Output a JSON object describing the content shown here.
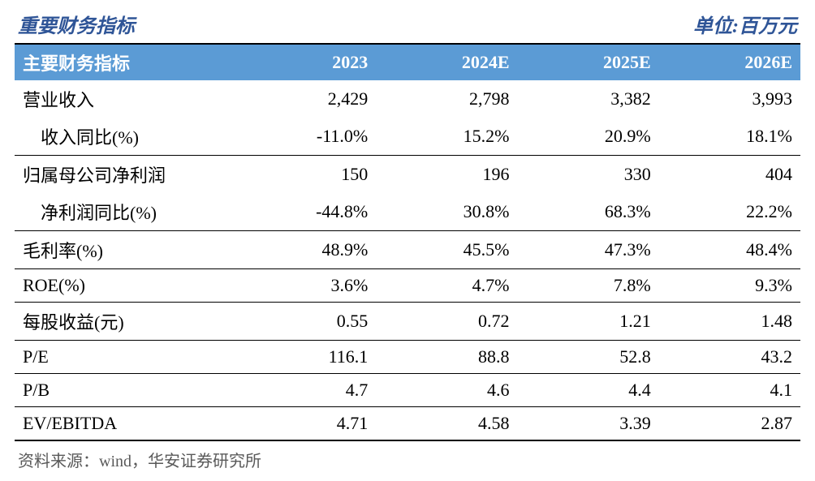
{
  "title_left": "重要财务指标",
  "title_right": "单位:百万元",
  "header": {
    "col0": "主要财务指标",
    "col1": "2023",
    "col2": "2024E",
    "col3": "2025E",
    "col4": "2026E"
  },
  "rows": [
    {
      "label": "营业收入",
      "v1": "2,429",
      "v2": "2,798",
      "v3": "3,382",
      "v4": "3,993",
      "sep": false,
      "indent": false
    },
    {
      "label": "收入同比(%)",
      "v1": "-11.0%",
      "v2": "15.2%",
      "v3": "20.9%",
      "v4": "18.1%",
      "sep": true,
      "indent": true
    },
    {
      "label": "归属母公司净利润",
      "v1": "150",
      "v2": "196",
      "v3": "330",
      "v4": "404",
      "sep": false,
      "indent": false
    },
    {
      "label": "净利润同比(%)",
      "v1": "-44.8%",
      "v2": "30.8%",
      "v3": "68.3%",
      "v4": "22.2%",
      "sep": true,
      "indent": true
    },
    {
      "label": "毛利率(%)",
      "v1": "48.9%",
      "v2": "45.5%",
      "v3": "47.3%",
      "v4": "48.4%",
      "sep": true,
      "indent": false
    },
    {
      "label": "ROE(%)",
      "v1": "3.6%",
      "v2": "4.7%",
      "v3": "7.8%",
      "v4": "9.3%",
      "sep": true,
      "indent": false
    },
    {
      "label": "每股收益(元)",
      "v1": "0.55",
      "v2": "0.72",
      "v3": "1.21",
      "v4": "1.48",
      "sep": true,
      "indent": false
    },
    {
      "label": "P/E",
      "v1": "116.1",
      "v2": "88.8",
      "v3": "52.8",
      "v4": "43.2",
      "sep": true,
      "indent": false
    },
    {
      "label": "P/B",
      "v1": "4.7",
      "v2": "4.6",
      "v3": "4.4",
      "v4": "4.1",
      "sep": true,
      "indent": false
    },
    {
      "label": "EV/EBITDA",
      "v1": "4.71",
      "v2": "4.58",
      "v3": "3.39",
      "v4": "2.87",
      "sep": false,
      "indent": false
    }
  ],
  "source_note": "资料来源：wind，华安证券研究所",
  "styling": {
    "header_bg": "#5b9bd5",
    "header_text": "#ffffff",
    "title_color": "#2f5597",
    "border_color": "#000000",
    "body_text": "#000000",
    "source_text": "#595959",
    "background": "#ffffff",
    "font_family": "SimSun",
    "title_fontsize": 24,
    "header_fontsize": 22,
    "cell_fontsize": 22,
    "source_fontsize": 20
  },
  "table_meta": {
    "type": "table",
    "columns": 5,
    "rows": 10,
    "col_widths_pct": [
      28,
      18,
      18,
      18,
      18
    ],
    "col_align": [
      "left",
      "right",
      "right",
      "right",
      "right"
    ]
  }
}
